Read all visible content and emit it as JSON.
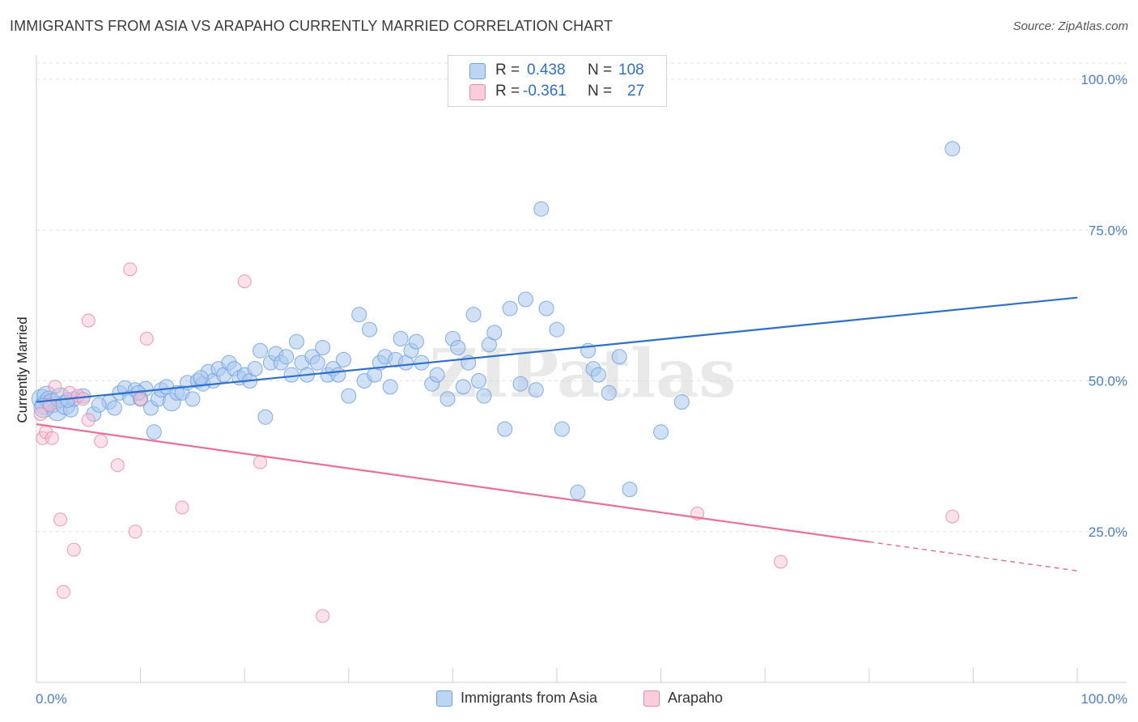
{
  "title": "IMMIGRANTS FROM ASIA VS ARAPAHO CURRENTLY MARRIED CORRELATION CHART",
  "source": "Source: ZipAtlas.com",
  "watermark": "ZIPatlas",
  "legend": {
    "rows": [
      {
        "r_label": "R =",
        "r_value": "0.438",
        "n_label": "N =",
        "n_value": "108",
        "color": "#a9c8ef"
      },
      {
        "r_label": "R =",
        "r_value": "-0.361",
        "n_label": "N =",
        "n_value": "27",
        "color": "#f6bcd0"
      }
    ]
  },
  "bottom_legend": [
    {
      "label": "Immigrants from Asia",
      "color": "#a9c8ef"
    },
    {
      "label": "Arapaho",
      "color": "#f6bcd0"
    }
  ],
  "chart_data": {
    "type": "scatter",
    "title": "IMMIGRANTS FROM ASIA VS ARAPAHO CURRENTLY MARRIED CORRELATION CHART",
    "xlabel": "",
    "ylabel": "Currently Married",
    "xlim": [
      0,
      100
    ],
    "ylim": [
      0,
      105
    ],
    "x_tick_labels": {
      "min": "0.0%",
      "max": "100.0%"
    },
    "y_ticks": [
      25,
      50,
      75,
      100
    ],
    "y_tick_labels": [
      "25.0%",
      "50.0%",
      "75.0%",
      "100.0%"
    ],
    "grid": true,
    "series": [
      {
        "name": "Immigrants from Asia",
        "color": "#6fa1df",
        "fill": "#a9c8ef",
        "r": 0.438,
        "n": 108,
        "trend": {
          "x0": 0,
          "y0": 46.5,
          "x1": 100,
          "y1": 63.8,
          "color": "#2e6fcc"
        },
        "points": [
          [
            0.5,
            47.0
          ],
          [
            0.8,
            46.0
          ],
          [
            1.0,
            47.5
          ],
          [
            1.2,
            46.8
          ],
          [
            1.5,
            46.3
          ],
          [
            2.0,
            45.0
          ],
          [
            2.3,
            47.2
          ],
          [
            2.8,
            46.0
          ],
          [
            3.3,
            45.2
          ],
          [
            3.6,
            47.0
          ],
          [
            4.5,
            47.5
          ],
          [
            5.5,
            44.5
          ],
          [
            7.0,
            46.5
          ],
          [
            7.5,
            45.5
          ],
          [
            8.0,
            48.0
          ],
          [
            8.5,
            48.8
          ],
          [
            9.0,
            47.2
          ],
          [
            9.5,
            48.5
          ],
          [
            10.0,
            47.0
          ],
          [
            10.5,
            48.7
          ],
          [
            11.0,
            45.5
          ],
          [
            11.3,
            41.5
          ],
          [
            11.7,
            47.0
          ],
          [
            12.0,
            48.5
          ],
          [
            12.5,
            49.0
          ],
          [
            13.0,
            46.5
          ],
          [
            13.5,
            48.0
          ],
          [
            14.0,
            48.0
          ],
          [
            14.5,
            49.7
          ],
          [
            15.0,
            47.0
          ],
          [
            15.5,
            50.0
          ],
          [
            16.0,
            49.5
          ],
          [
            16.5,
            51.5
          ],
          [
            17.0,
            50.0
          ],
          [
            17.5,
            52.0
          ],
          [
            18.0,
            51.0
          ],
          [
            18.5,
            53.0
          ],
          [
            19.0,
            52.0
          ],
          [
            19.5,
            50.5
          ],
          [
            20.0,
            51.0
          ],
          [
            20.5,
            50.0
          ],
          [
            21.0,
            52.0
          ],
          [
            21.5,
            55.0
          ],
          [
            22.0,
            44.0
          ],
          [
            22.5,
            53.0
          ],
          [
            23.0,
            54.5
          ],
          [
            23.5,
            53.0
          ],
          [
            24.0,
            54.0
          ],
          [
            24.5,
            51.0
          ],
          [
            25.0,
            56.5
          ],
          [
            25.5,
            53.0
          ],
          [
            26.0,
            51.0
          ],
          [
            26.5,
            54.0
          ],
          [
            27.0,
            53.0
          ],
          [
            27.5,
            55.5
          ],
          [
            28.0,
            51.0
          ],
          [
            28.5,
            52.0
          ],
          [
            29.0,
            51.0
          ],
          [
            29.5,
            53.5
          ],
          [
            30.0,
            47.5
          ],
          [
            31.0,
            61.0
          ],
          [
            31.5,
            50.0
          ],
          [
            32.0,
            58.5
          ],
          [
            32.5,
            51.0
          ],
          [
            33.0,
            53.0
          ],
          [
            33.5,
            54.0
          ],
          [
            34.0,
            49.0
          ],
          [
            34.5,
            53.5
          ],
          [
            35.0,
            57.0
          ],
          [
            35.5,
            53.0
          ],
          [
            36.0,
            55.0
          ],
          [
            36.5,
            56.5
          ],
          [
            37.0,
            53.0
          ],
          [
            38.0,
            49.5
          ],
          [
            38.5,
            51.0
          ],
          [
            39.5,
            47.0
          ],
          [
            40.0,
            57.0
          ],
          [
            40.5,
            55.5
          ],
          [
            41.0,
            49.0
          ],
          [
            41.5,
            53.0
          ],
          [
            42.0,
            61.0
          ],
          [
            42.5,
            50.0
          ],
          [
            43.0,
            47.5
          ],
          [
            43.5,
            56.0
          ],
          [
            44.0,
            58.0
          ],
          [
            45.0,
            42.0
          ],
          [
            45.5,
            62.0
          ],
          [
            46.5,
            49.5
          ],
          [
            47.0,
            63.5
          ],
          [
            48.0,
            48.5
          ],
          [
            48.5,
            78.5
          ],
          [
            49.0,
            62.0
          ],
          [
            50.0,
            58.5
          ],
          [
            50.5,
            42.0
          ],
          [
            52.0,
            31.5
          ],
          [
            53.0,
            55.0
          ],
          [
            53.5,
            52.0
          ],
          [
            54.0,
            51.0
          ],
          [
            55.0,
            48.0
          ],
          [
            56.0,
            54.0
          ],
          [
            57.0,
            32.0
          ],
          [
            60.0,
            41.5
          ],
          [
            62.0,
            46.5
          ],
          [
            88.0,
            88.5
          ],
          [
            0.7,
            45.5
          ],
          [
            3.0,
            46.8
          ],
          [
            6.0,
            46.0
          ],
          [
            9.8,
            48.0
          ],
          [
            15.8,
            50.5
          ]
        ]
      },
      {
        "name": "Arapaho",
        "color": "#e98aaa",
        "fill": "#f6bcd0",
        "r": -0.361,
        "n": 27,
        "trend": {
          "x0": 0,
          "y0": 42.8,
          "x1": 80,
          "y1": 23.3,
          "color": "#e8709a"
        },
        "trend_dashed": {
          "x0": 80,
          "y0": 23.3,
          "x1": 100,
          "y1": 18.5
        },
        "points": [
          [
            0.4,
            44.5
          ],
          [
            0.6,
            40.5
          ],
          [
            0.9,
            41.5
          ],
          [
            1.3,
            46.0
          ],
          [
            1.5,
            40.5
          ],
          [
            1.8,
            49.0
          ],
          [
            2.3,
            27.0
          ],
          [
            2.6,
            15.0
          ],
          [
            3.2,
            48.0
          ],
          [
            3.6,
            22.0
          ],
          [
            4.0,
            47.5
          ],
          [
            4.5,
            47.0
          ],
          [
            5.0,
            43.5
          ],
          [
            5.0,
            60.0
          ],
          [
            6.2,
            40.0
          ],
          [
            7.8,
            36.0
          ],
          [
            9.0,
            68.5
          ],
          [
            9.5,
            25.0
          ],
          [
            10.0,
            47.0
          ],
          [
            10.6,
            57.0
          ],
          [
            14.0,
            29.0
          ],
          [
            20.0,
            66.5
          ],
          [
            21.5,
            36.5
          ],
          [
            27.5,
            11.0
          ],
          [
            63.5,
            28.0
          ],
          [
            71.5,
            20.0
          ],
          [
            88.0,
            27.5
          ]
        ]
      }
    ]
  }
}
